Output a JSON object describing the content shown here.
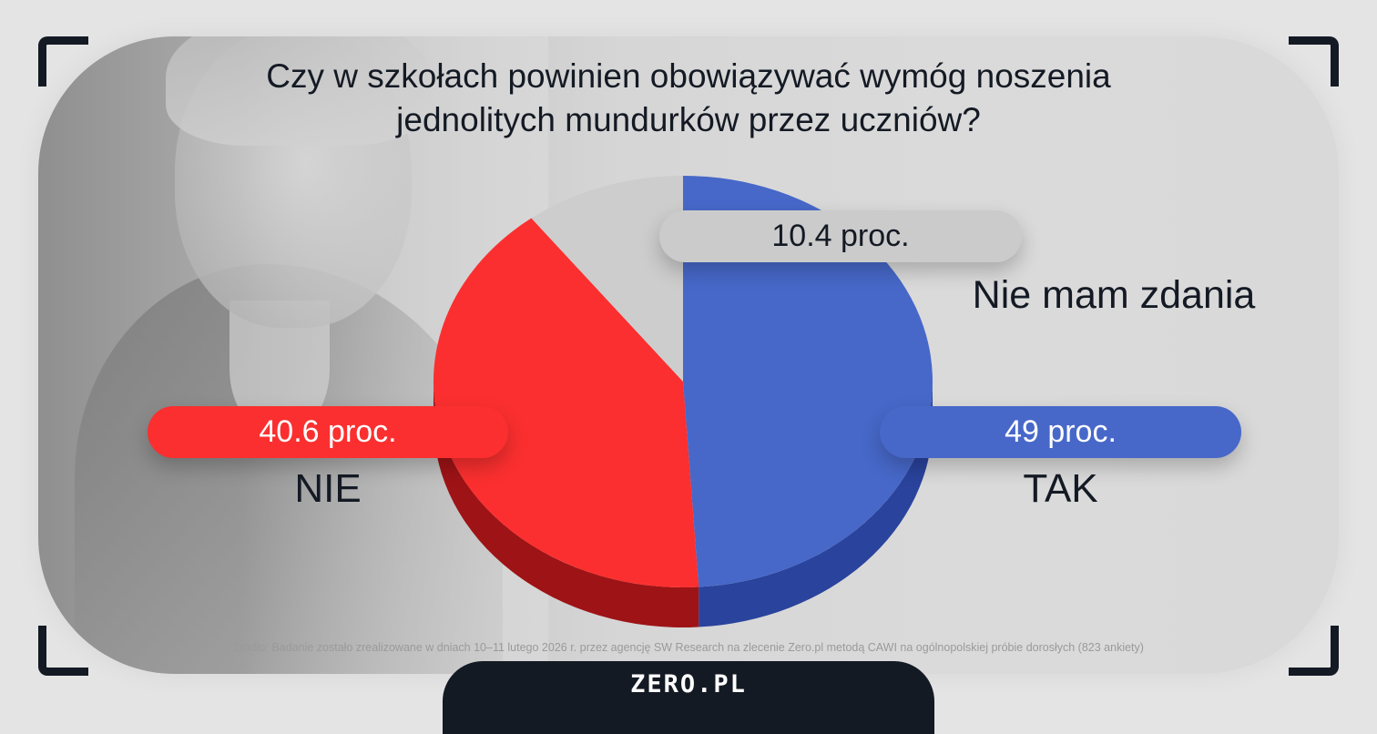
{
  "chart_data": {
    "type": "pie",
    "title": "Czy w szkołach powinien obowiązywać wymóg noszenia jednolitych mundurków przez uczniów?",
    "slices": [
      {
        "label": "TAK",
        "value": 49,
        "value_label": "49 proc.",
        "color": "#4768c9",
        "side_color": "#2a439c"
      },
      {
        "label": "NIE",
        "value": 40.6,
        "value_label": "40.6 proc.",
        "color": "#fb2f2f",
        "side_color": "#9e1316"
      },
      {
        "label": "Nie mam zdania",
        "value": 10.4,
        "value_label": "10.4 proc.",
        "color": "#cdcdcd",
        "side_color": "#a8a8a8"
      }
    ],
    "start": "12 o'clock, clockwise",
    "style": "3d-tilted"
  },
  "source": "Źródło: Badanie zostało zrealizowane w dniach 10–11 lutego 2026 r. przez agencję SW Research na zlecenie Zero.pl metodą CAWI na ogólnopolskiej próbie dorosłych (823 ankiety)",
  "brand": "ZERO.PL",
  "colors": {
    "dark": "#141a24",
    "background": "#e4e4e4",
    "pill_gray": "#cbcbcb"
  }
}
